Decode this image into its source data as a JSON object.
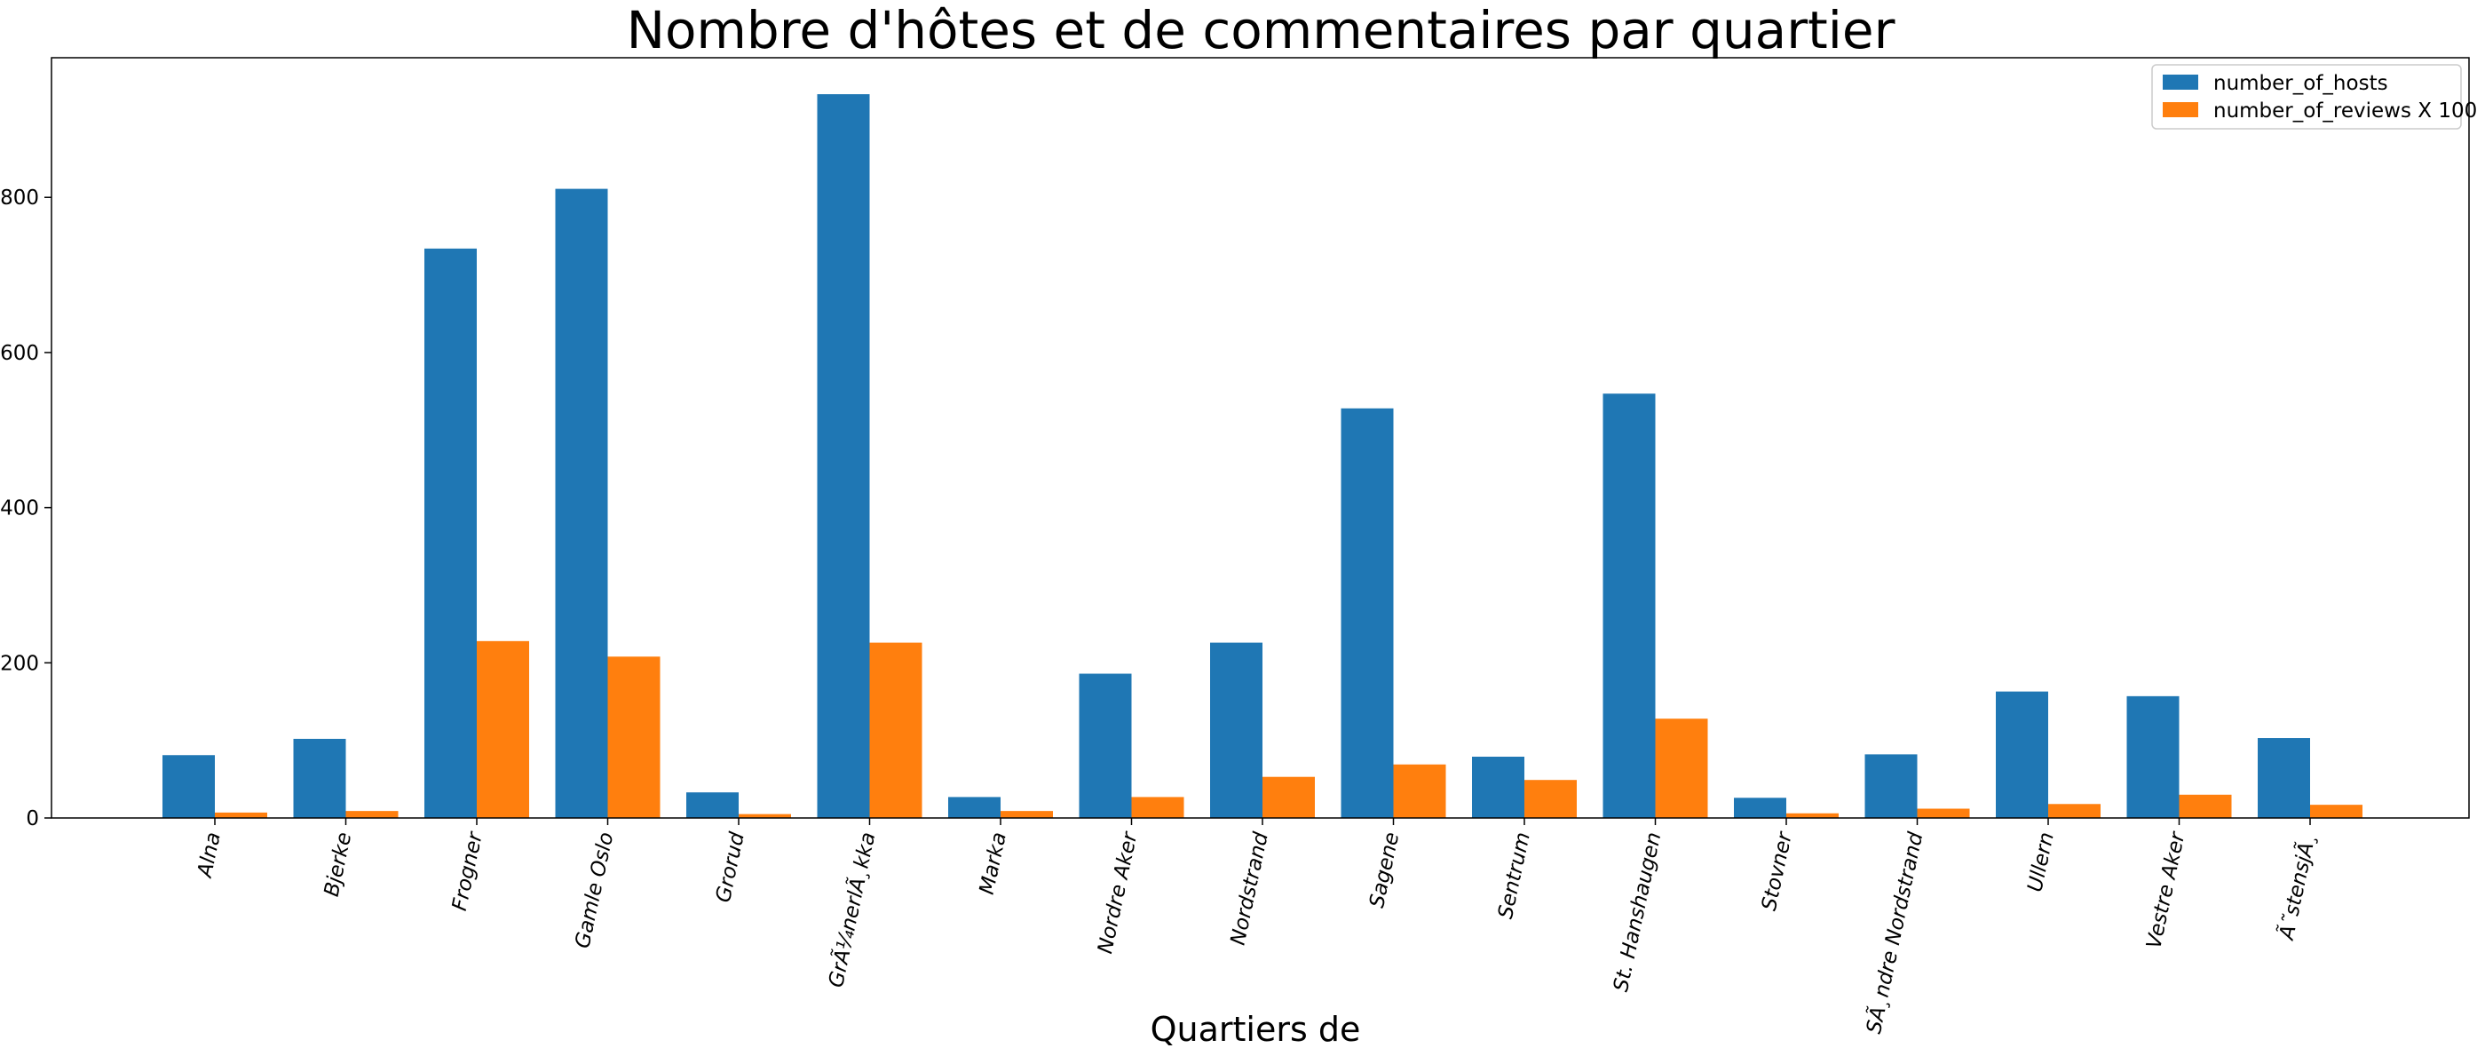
{
  "chart_data": {
    "type": "bar",
    "title": "Nombre d'hôtes et de commentaires par quartier",
    "xlabel": "Quartiers de",
    "ylabel": "",
    "ylim": [
      0,
      980
    ],
    "yticks": [
      0,
      200,
      400,
      600,
      800
    ],
    "grid": false,
    "legend_position": "top-right",
    "categories": [
      "Alna",
      "Bjerke",
      "Frogner",
      "Gamle Oslo",
      "Grorud",
      "GrÃ¼nerlÃ¸kka",
      "Marka",
      "Nordre Aker",
      "Nordstrand",
      "Sagene",
      "Sentrum",
      "St. Hanshaugen",
      "Stovner",
      "SÃ¸ndre Nordstrand",
      "Ullern",
      "Vestre Aker",
      "Ã˜stensjÃ¸"
    ],
    "series": [
      {
        "name": "number_of_hosts",
        "color": "#1f77b4",
        "values": [
          81,
          102,
          734,
          811,
          33,
          933,
          27,
          186,
          226,
          528,
          79,
          547,
          26,
          82,
          163,
          157,
          103
        ]
      },
      {
        "name": "number_of_reviews X 100",
        "color": "#ff7f0e",
        "values": [
          7,
          9,
          228,
          208,
          5,
          226,
          9,
          27,
          53,
          69,
          49,
          128,
          6,
          12,
          18,
          30,
          17
        ]
      }
    ]
  }
}
